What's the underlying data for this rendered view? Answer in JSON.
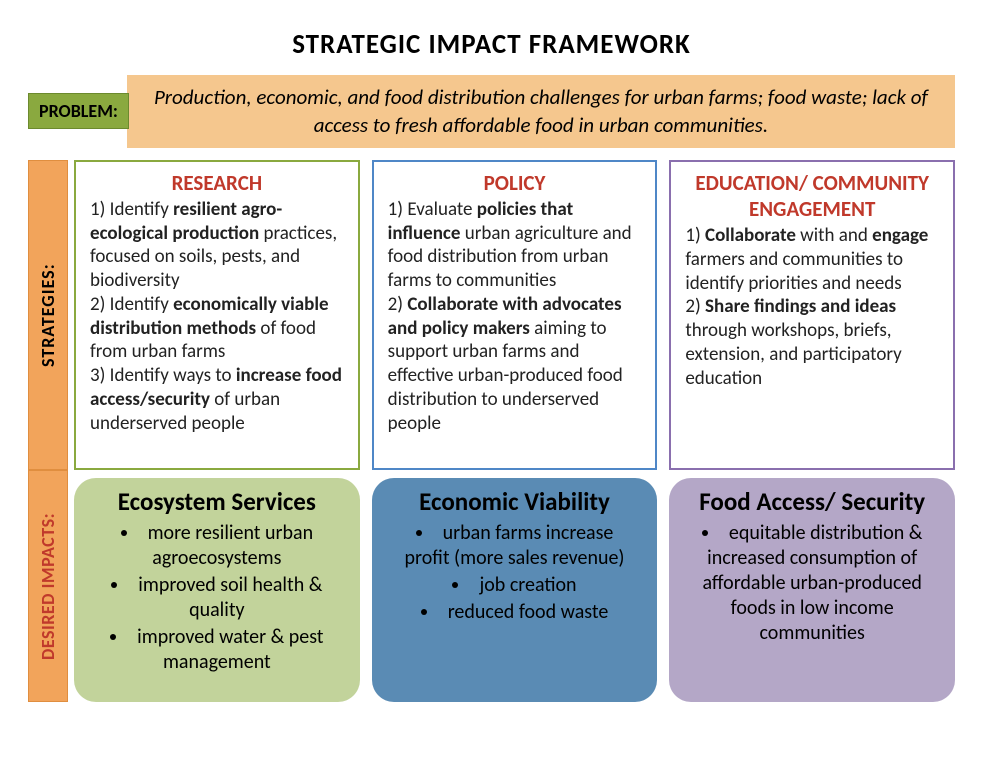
{
  "title": "STRATEGIC IMPACT FRAMEWORK",
  "problem": {
    "label": "PROBLEM:",
    "text": "Production, economic, and food distribution challenges for urban farms; food waste; lack of access to fresh affordable food in urban communities."
  },
  "side_labels": {
    "strategies": "STRATEGIES:",
    "impacts": "DESIRED IMPACTS:"
  },
  "strategies": {
    "research": {
      "title": "RESEARCH",
      "items": [
        {
          "num": "1)",
          "pre": "Identify ",
          "bold": "resilient agro-ecological production",
          "post": " practices, focused on soils, pests, and biodiversity"
        },
        {
          "num": "2)",
          "pre": "Identify ",
          "bold": "economically viable distribution methods",
          "post": " of food from urban farms"
        },
        {
          "num": "3)",
          "pre": "Identify ways to ",
          "bold": "increase food access/security",
          "post": " of urban underserved people"
        }
      ],
      "border_color": "#8aa93f"
    },
    "policy": {
      "title": "POLICY",
      "items": [
        {
          "num": "1)",
          "pre": "Evaluate ",
          "bold": "policies that influence",
          "post": " urban agriculture and food distribution from urban farms to communities"
        },
        {
          "num": "2)",
          "pre": "",
          "bold": "Collaborate with advocates and policy makers",
          "post": " aiming to support urban farms and effective urban-produced food distribution to underserved people"
        }
      ],
      "border_color": "#4f87c7"
    },
    "education": {
      "title": "EDUCATION/ COMMUNITY ENGAGEMENT",
      "items": [
        {
          "num": "1)",
          "pre": "",
          "bold": "Collaborate",
          "post": " with and ",
          "bold2": "engage",
          "post2": " farmers and communities to identify priorities and needs"
        },
        {
          "num": "2)",
          "pre": "",
          "bold": "Share findings and ideas",
          "post": " through workshops, briefs, extension, and participatory education"
        }
      ],
      "border_color": "#8a6fae"
    }
  },
  "impacts": {
    "eco": {
      "title": "Ecosystem Services",
      "bullets": [
        "more resilient urban agroecosystems",
        "improved soil health & quality",
        "improved water & pest management"
      ],
      "bg": "#c2d39b"
    },
    "econ": {
      "title": "Economic Viability",
      "bullets": [
        "urban farms increase profit (more sales revenue)",
        "job creation",
        "reduced food waste"
      ],
      "bg": "#5a8bb4"
    },
    "food": {
      "title": "Food Access/ Security",
      "bullets": [
        "equitable distribution & increased consumption of affordable urban-produced foods in low income communities"
      ],
      "bg": "#b4a7c7"
    }
  },
  "colors": {
    "title_red": "#c0392b",
    "problem_label_bg": "#8aa93f",
    "problem_text_bg": "#f5c78e",
    "side_bg": "#f2a45b"
  },
  "typography": {
    "title_fontsize": 27,
    "strategy_title_fontsize": 21,
    "body_fontsize": 19,
    "impact_title_fontsize": 25,
    "impact_body_fontsize": 20
  }
}
